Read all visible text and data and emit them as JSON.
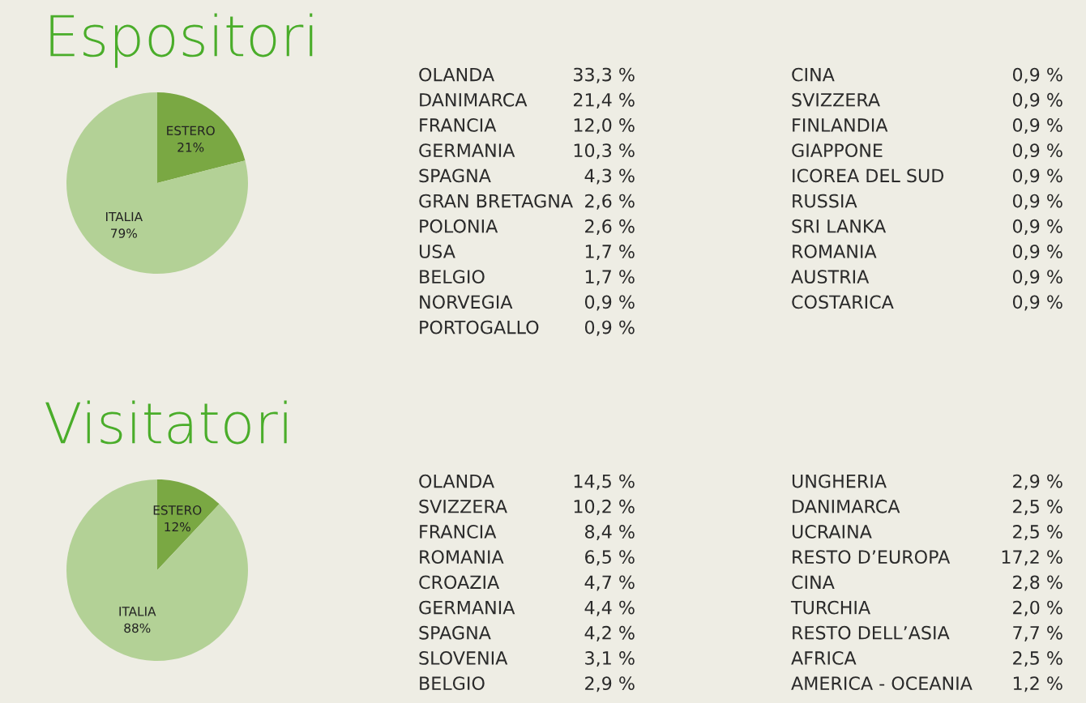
{
  "chart_data": [
    {
      "type": "pie",
      "title": "Espositori",
      "categories": [
        "ESTERO",
        "ITALIA"
      ],
      "values": [
        21,
        79
      ],
      "value_labels": [
        "21%",
        "79%"
      ],
      "colors": [
        "#7aa843",
        "#b3d196"
      ]
    },
    {
      "type": "other",
      "categories": [
        "OLANDA",
        "DANIMARCA",
        "FRANCIA",
        "GERMANIA",
        "SPAGNA",
        "GRAN BRETAGNA",
        "POLONIA",
        "USA",
        "BELGIO",
        "NORVEGIA",
        "PORTOGALLO"
      ],
      "values": [
        33.3,
        21.4,
        12.0,
        10.3,
        4.3,
        2.6,
        2.6,
        1.7,
        1.7,
        0.9,
        0.9
      ],
      "value_labels": [
        "33,3 %",
        "21,4 %",
        "12,0 %",
        "10,3 %",
        "4,3 %",
        "2,6 %",
        "2,6 %",
        "1,7 %",
        "1,7 %",
        "0,9 %",
        "0,9 %"
      ]
    },
    {
      "type": "other",
      "categories": [
        "CINA",
        "SVIZZERA",
        "FINLANDIA",
        "GIAPPONE",
        "ICOREA DEL SUD",
        "RUSSIA",
        "SRI LANKA",
        "ROMANIA",
        "AUSTRIA",
        "COSTARICA"
      ],
      "values": [
        0.9,
        0.9,
        0.9,
        0.9,
        0.9,
        0.9,
        0.9,
        0.9,
        0.9,
        0.9
      ],
      "value_labels": [
        "0,9 %",
        "0,9 %",
        "0,9 %",
        "0,9 %",
        "0,9 %",
        "0,9 %",
        "0,9 %",
        "0,9 %",
        "0,9 %",
        "0,9 %"
      ]
    },
    {
      "type": "pie",
      "title": "Visitatori",
      "categories": [
        "ESTERO",
        "ITALIA"
      ],
      "values": [
        12,
        88
      ],
      "value_labels": [
        "12%",
        "88%"
      ],
      "colors": [
        "#7aa843",
        "#b3d196"
      ]
    },
    {
      "type": "other",
      "categories": [
        "OLANDA",
        "SVIZZERA",
        "FRANCIA",
        "ROMANIA",
        "CROAZIA",
        "GERMANIA",
        "SPAGNA",
        "SLOVENIA",
        "BELGIO"
      ],
      "values": [
        14.5,
        10.2,
        8.4,
        6.5,
        4.7,
        4.4,
        4.2,
        3.1,
        2.9
      ],
      "value_labels": [
        "14,5 %",
        "10,2 %",
        "8,4 %",
        "6,5 %",
        "4,7 %",
        "4,4 %",
        "4,2 %",
        "3,1 %",
        "2,9 %"
      ]
    },
    {
      "type": "other",
      "categories": [
        "UNGHERIA",
        "DANIMARCA",
        "UCRAINA",
        "RESTO D’EUROPA",
        "CINA",
        "TURCHIA",
        "RESTO DELL’ASIA",
        "AFRICA",
        "AMERICA - OCEANIA"
      ],
      "values": [
        2.9,
        2.5,
        2.5,
        17.2,
        2.8,
        2.0,
        7.7,
        2.5,
        1.2
      ],
      "value_labels": [
        "2,9 %",
        "2,5 %",
        "2,5 %",
        "17,2 %",
        "2,8 %",
        "2,0 %",
        "7,7 %",
        "2,5 %",
        "1,2 %"
      ]
    }
  ]
}
